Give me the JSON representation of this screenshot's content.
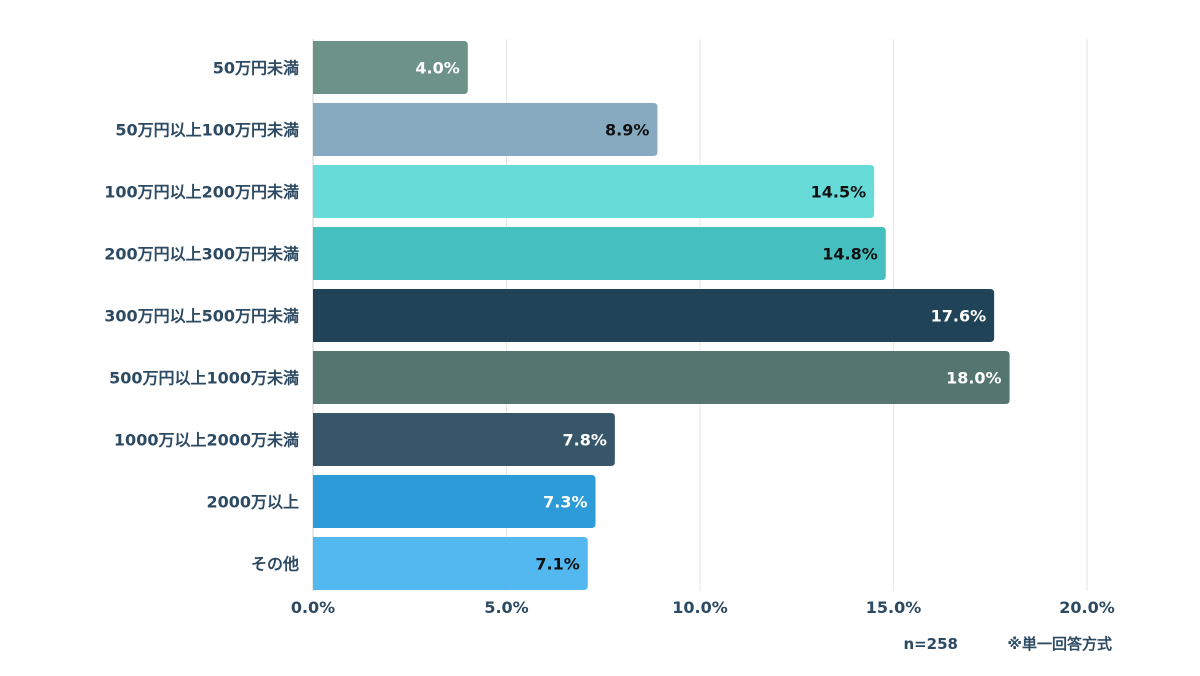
{
  "chart_data": {
    "type": "bar",
    "orientation": "horizontal",
    "categories": [
      "50万円未満",
      "50万円以上100万円未満",
      "100万円以上200万円未満",
      "200万円以上300万円未満",
      "300万円以上500万円未満",
      "500万円以上1000万未満",
      "1000万以上2000万未満",
      "2000万以上",
      "その他"
    ],
    "values": [
      4.0,
      8.9,
      14.5,
      14.8,
      17.6,
      18.0,
      7.8,
      7.3,
      7.1
    ],
    "value_labels": [
      "4.0%",
      "8.9%",
      "14.5%",
      "14.8%",
      "17.6%",
      "18.0%",
      "7.8%",
      "7.3%",
      "7.1%"
    ],
    "bar_colors": [
      "#6d9288",
      "#86abc1",
      "#66dbd8",
      "#45bfc0",
      "#214358",
      "#557670",
      "#375669",
      "#2d9bd7",
      "#52b8ef"
    ],
    "label_colors": [
      "#ffffff",
      "#111111",
      "#111111",
      "#111111",
      "#ffffff",
      "#ffffff",
      "#ffffff",
      "#ffffff",
      "#111111"
    ],
    "xlim": [
      0,
      20
    ],
    "x_ticks": [
      0,
      5,
      10,
      15,
      20
    ],
    "x_tick_labels": [
      "0.0%",
      "5.0%",
      "10.0%",
      "15.0%",
      "20.0%"
    ],
    "grid": true,
    "title": "",
    "xlabel": "",
    "ylabel": ""
  },
  "footnote": {
    "sample_size": "n=258",
    "answer_type": "※単一回答方式"
  }
}
